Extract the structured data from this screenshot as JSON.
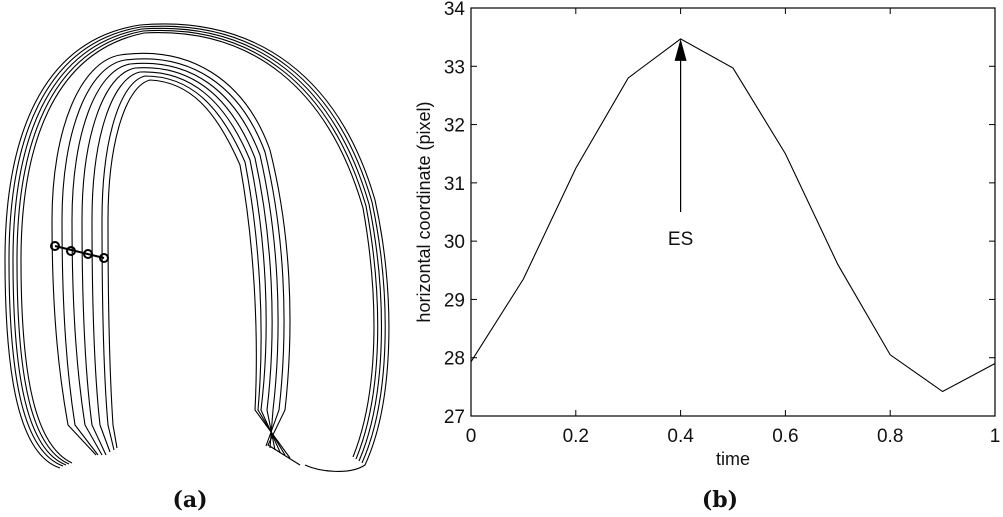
{
  "panel_a": {
    "caption": "(a)",
    "description": "Overlaid myocardial contours over time with tracked landmark points"
  },
  "panel_b": {
    "caption": "(b)"
  },
  "chart_data": [
    {
      "type": "line",
      "panel": "(b)",
      "title": "",
      "xlabel": "time",
      "ylabel": "horizontal coordinate (pixel)",
      "xlim": [
        0,
        1
      ],
      "ylim": [
        27,
        34
      ],
      "x_ticks": [
        "0",
        "0.2",
        "0.4",
        "0.6",
        "0.8",
        "1"
      ],
      "y_ticks": [
        "27",
        "28",
        "29",
        "30",
        "31",
        "32",
        "33",
        "34"
      ],
      "grid": false,
      "legend": null,
      "x": [
        0,
        0.1,
        0.2,
        0.3,
        0.4,
        0.5,
        0.6,
        0.7,
        0.8,
        0.9,
        1.0
      ],
      "values": [
        27.93,
        29.35,
        31.25,
        32.8,
        33.47,
        32.97,
        31.5,
        29.6,
        28.05,
        27.42,
        27.9
      ],
      "annotations": [
        {
          "text": "ES",
          "x": 0.4,
          "y_text": 29.9,
          "arrow_to": [
            0.4,
            33.47
          ]
        }
      ]
    }
  ]
}
